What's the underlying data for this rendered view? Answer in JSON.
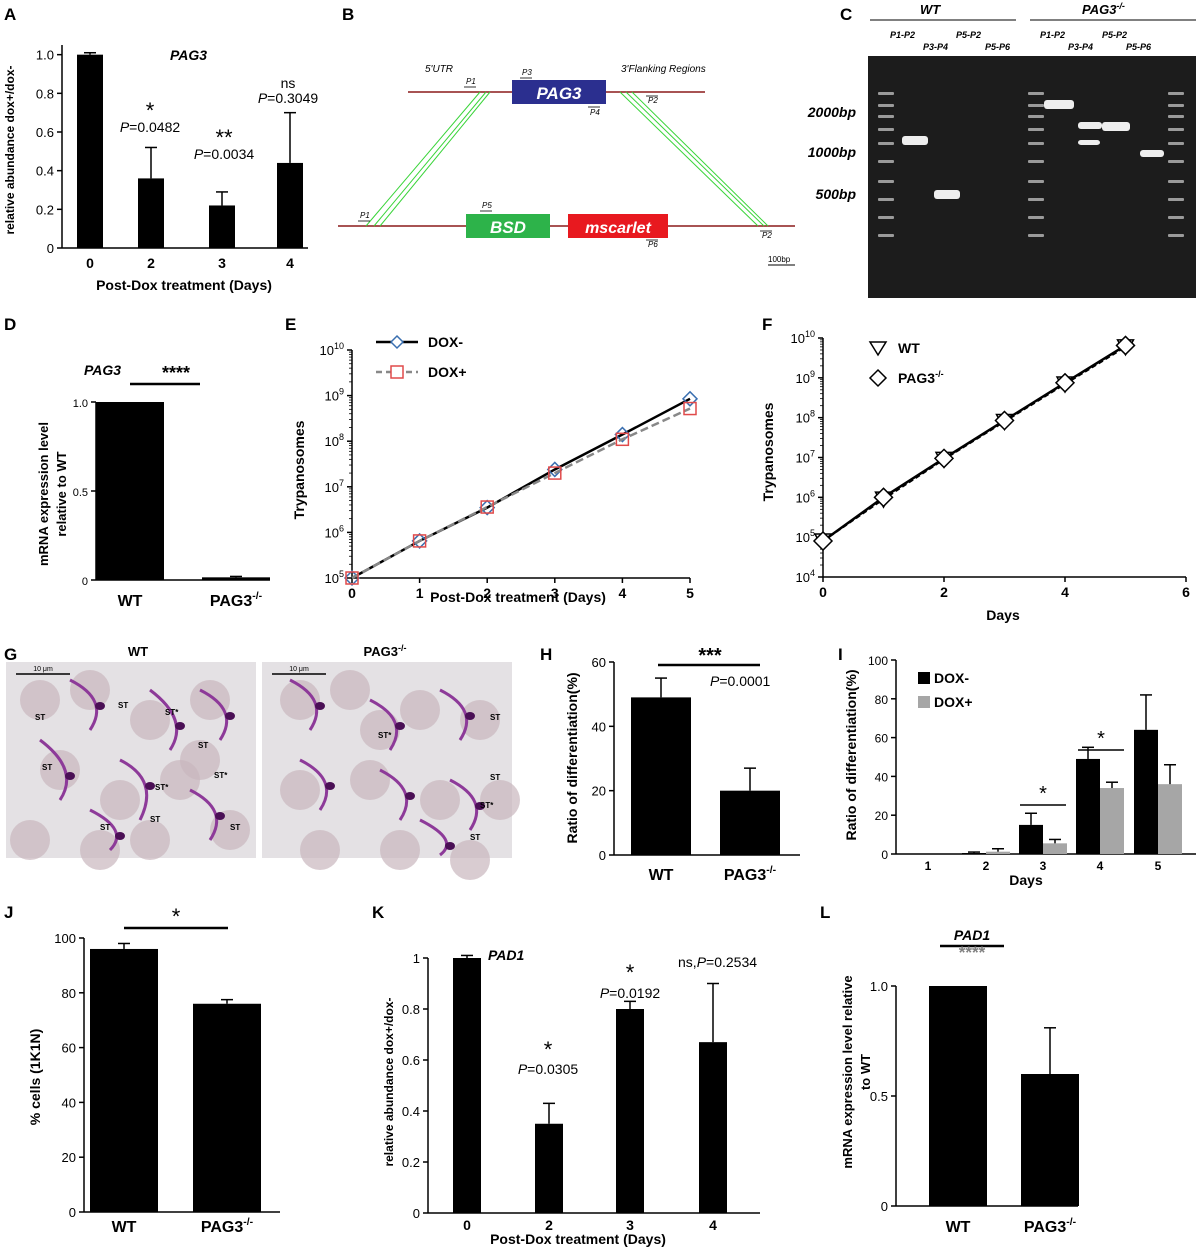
{
  "panels": {
    "A": {
      "letter": "A",
      "chart_data": {
        "type": "bar",
        "title": "PAG3",
        "xlabel": "Post-Dox treatment (Days)",
        "ylabel": "relative abundance dox+/dox-",
        "categories": [
          "0",
          "2",
          "3",
          "4"
        ],
        "values": [
          1.0,
          0.36,
          0.22,
          0.44
        ],
        "errors": [
          0.01,
          0.16,
          0.07,
          0.26
        ],
        "ylim": [
          0,
          1.05
        ],
        "yticks": [
          "0",
          "0.2",
          "0.4",
          "0.6",
          "0.8",
          "1.0"
        ],
        "annotations": [
          {
            "category": "2",
            "mark": "*",
            "p": "=0.0482"
          },
          {
            "category": "3",
            "mark": "**",
            "p": "=0.0034"
          },
          {
            "category": "4",
            "mark": "ns",
            "p": "=0.3049"
          }
        ],
        "p_label": "P",
        "bar_color": "#000000"
      }
    },
    "B": {
      "letter": "B",
      "labels": {
        "utr5": "5'UTR",
        "flank3": "3'Flanking Regions",
        "gene": "PAG3",
        "bsd": "BSD",
        "mscarlet": "mscarlet",
        "scale": "100bp",
        "p1_top": "P1",
        "p3": "P3",
        "p4": "P4",
        "p2_top": "P2",
        "p1_bottom": "P1",
        "p5": "P5",
        "p6": "P6",
        "p2_bottom": "P2"
      },
      "colors": {
        "line": "#8b1a1a",
        "gene": "#2b2f8f",
        "bsd": "#2db34a",
        "mscarlet": "#e8191f",
        "cross": "#38d438"
      }
    },
    "C": {
      "letter": "C",
      "group_wt": "WT",
      "group_ko": "PAG3",
      "ko_sup": "-/-",
      "lanes_top": [
        "P1-P2",
        "P5-P2",
        "P1-P2",
        "P5-P2"
      ],
      "lanes_bottom": [
        "P3-P4",
        "P5-P6",
        "P3-P4",
        "P5-P6"
      ],
      "sizes": [
        "2000bp",
        "1000bp",
        "500bp"
      ]
    },
    "D": {
      "letter": "D",
      "chart_data": {
        "type": "bar",
        "title": "PAG3",
        "ylabel_line1": "mRNA expression level",
        "ylabel_line2": "relative to WT",
        "categories": [
          "WT",
          "PAG3"
        ],
        "category_sup": [
          "",
          "-/-"
        ],
        "values": [
          1.0,
          0.015
        ],
        "errors": [
          0,
          0.005
        ],
        "ylim": [
          0,
          1.0
        ],
        "yticks": [
          "0",
          "0.5",
          "1.0"
        ],
        "significance": "****"
      }
    },
    "E": {
      "letter": "E",
      "chart_data": {
        "type": "line",
        "xlabel": "Post-Dox treatment (Days)",
        "ylabel": "Trypanosomes",
        "x": [
          0,
          1,
          2,
          3,
          4,
          5
        ],
        "log_scale_y": true,
        "ylim_exp": [
          5,
          10
        ],
        "xticks": [
          "0",
          "1",
          "2",
          "3",
          "4",
          "5"
        ],
        "series": [
          {
            "name": "DOX-",
            "values": [
              100000.0,
              650000.0,
              3500000.0,
              24000000.0,
              140000000.0,
              850000000.0
            ],
            "color": "#000000",
            "marker_color": "#3a6fb0"
          },
          {
            "name": "DOX+",
            "values": [
              100000.0,
              650000.0,
              3600000.0,
              20000000.0,
              110000000.0,
              520000000.0
            ],
            "color": "#888888",
            "marker_color": "#e04a4a"
          }
        ]
      }
    },
    "F": {
      "letter": "F",
      "chart_data": {
        "type": "line",
        "xlabel": "Days",
        "ylabel": "Trypanosomes",
        "x": [
          0,
          1,
          2,
          3,
          4,
          5
        ],
        "log_scale_y": true,
        "ylim_exp": [
          4,
          10
        ],
        "xlim": [
          0,
          6
        ],
        "xticks": [
          "0",
          "2",
          "4",
          "6"
        ],
        "series": [
          {
            "name": "WT",
            "values": [
              80000.0,
              900000.0,
              9000000.0,
              80000000.0,
              700000000.0,
              6000000000.0
            ]
          },
          {
            "name": "PAG3",
            "name_sup": "-/-",
            "values": [
              80000.0,
              1000000.0,
              9500000.0,
              85000000.0,
              750000000.0,
              6500000000.0
            ]
          }
        ]
      }
    },
    "G": {
      "letter": "G",
      "left_title": "WT",
      "right_title": "PAG3",
      "right_sup": "-/-",
      "scale_text": "10 μm",
      "st_label": "ST",
      "st_star_label": "ST*"
    },
    "H": {
      "letter": "H",
      "chart_data": {
        "type": "bar",
        "ylabel": "Ratio of differentiation(%)",
        "categories": [
          "WT",
          "PAG3"
        ],
        "category_sup": [
          "",
          "-/-"
        ],
        "values": [
          49,
          20
        ],
        "errors": [
          6,
          7
        ],
        "ylim": [
          0,
          60
        ],
        "yticks": [
          "0",
          "20",
          "40",
          "60"
        ],
        "significance": "***",
        "p_label": "P",
        "p_value": "=0.0001"
      }
    },
    "I": {
      "letter": "I",
      "chart_data": {
        "type": "bar",
        "xlabel": "Days",
        "ylabel": "Ratio of differentiation(%)",
        "categories": [
          "1",
          "2",
          "3",
          "4",
          "5"
        ],
        "ylim": [
          0,
          100
        ],
        "yticks": [
          "0",
          "20",
          "40",
          "60",
          "80",
          "100"
        ],
        "series": [
          {
            "name": "DOX-",
            "values": [
              0,
              0.5,
              15,
              49,
              64
            ],
            "errors": [
              0,
              0.5,
              6,
              6,
              18
            ],
            "color": "#000000"
          },
          {
            "name": "DOX+",
            "values": [
              0,
              1.2,
              5.5,
              34,
              36
            ],
            "errors": [
              0,
              1.5,
              2,
              3,
              10
            ],
            "color": "#a6a6a6"
          }
        ],
        "significance": [
          {
            "category": "3",
            "mark": "*"
          },
          {
            "category": "4",
            "mark": "*"
          }
        ]
      }
    },
    "J": {
      "letter": "J",
      "chart_data": {
        "type": "bar",
        "ylabel": "% cells (1K1N)",
        "categories": [
          "WT",
          "PAG3"
        ],
        "category_sup": [
          "",
          "-/-"
        ],
        "values": [
          96,
          76
        ],
        "errors": [
          2,
          1.5
        ],
        "ylim": [
          0,
          100
        ],
        "yticks": [
          "0",
          "20",
          "40",
          "60",
          "80",
          "100"
        ],
        "significance": "*"
      }
    },
    "K": {
      "letter": "K",
      "chart_data": {
        "type": "bar",
        "title": "PAD1",
        "xlabel": "Post-Dox treatment (Days)",
        "ylabel": "relative abundance dox+/dox-",
        "categories": [
          "0",
          "2",
          "3",
          "4"
        ],
        "values": [
          1.0,
          0.35,
          0.8,
          0.67
        ],
        "errors": [
          0.01,
          0.08,
          0.03,
          0.23
        ],
        "ylim": [
          0,
          1.0
        ],
        "yticks": [
          "0",
          "0.2",
          "0.4",
          "0.6",
          "0.8",
          "1"
        ],
        "annotations": [
          {
            "category": "2",
            "mark": "*",
            "p": "=0.0305"
          },
          {
            "category": "3",
            "mark": "*",
            "p": "=0.0192"
          },
          {
            "category": "4",
            "mark": "ns,",
            "p": "=0.2534"
          }
        ],
        "p_label": "P"
      }
    },
    "L": {
      "letter": "L",
      "chart_data": {
        "type": "bar",
        "title": "PAD1",
        "ylabel_line1": "mRNA expression level relative",
        "ylabel_line2": "to WT",
        "categories": [
          "WT",
          "PAG3"
        ],
        "category_sup": [
          "",
          "-/-"
        ],
        "values": [
          1.0,
          0.6
        ],
        "errors": [
          0,
          0.21
        ],
        "ylim": [
          0,
          1.0
        ],
        "yticks": [
          "0",
          "0.5",
          "1.0"
        ],
        "significance": "****",
        "significance_color": "#7f7f7f"
      }
    }
  }
}
